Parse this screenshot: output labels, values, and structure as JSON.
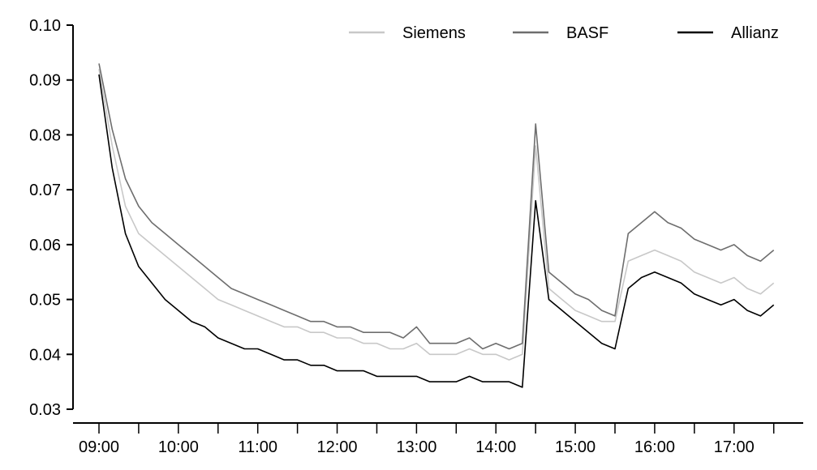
{
  "chart_data": {
    "type": "line",
    "title": "",
    "xlabel": "",
    "ylabel": "",
    "ylim": [
      0.03,
      0.1
    ],
    "xlim": [
      "09:00",
      "17:40"
    ],
    "grid": false,
    "legend_position": "top-right",
    "y_ticks": [
      "0.03",
      "0.04",
      "0.05",
      "0.06",
      "0.07",
      "0.08",
      "0.09",
      "0.10"
    ],
    "x_ticks": [
      "09:00",
      "10:00",
      "11:00",
      "12:00",
      "13:00",
      "14:00",
      "15:00",
      "16:00",
      "17:00"
    ],
    "x": [
      "09:00",
      "09:10",
      "09:20",
      "09:30",
      "09:40",
      "09:50",
      "10:00",
      "10:10",
      "10:20",
      "10:30",
      "10:40",
      "10:50",
      "11:00",
      "11:10",
      "11:20",
      "11:30",
      "11:40",
      "11:50",
      "12:00",
      "12:10",
      "12:20",
      "12:30",
      "12:40",
      "12:50",
      "13:00",
      "13:10",
      "13:20",
      "13:30",
      "13:40",
      "13:50",
      "14:00",
      "14:10",
      "14:20",
      "14:30",
      "14:40",
      "14:50",
      "15:00",
      "15:10",
      "15:20",
      "15:30",
      "15:40",
      "15:50",
      "16:00",
      "16:10",
      "16:20",
      "16:30",
      "16:40",
      "16:50",
      "17:00",
      "17:10",
      "17:20",
      "17:30"
    ],
    "series": [
      {
        "name": "Siemens",
        "color": "#c8c8c8",
        "values": [
          0.092,
          0.078,
          0.067,
          0.062,
          0.06,
          0.058,
          0.056,
          0.054,
          0.052,
          0.05,
          0.049,
          0.048,
          0.047,
          0.046,
          0.045,
          0.045,
          0.044,
          0.044,
          0.043,
          0.043,
          0.042,
          0.042,
          0.041,
          0.041,
          0.042,
          0.04,
          0.04,
          0.04,
          0.041,
          0.04,
          0.04,
          0.039,
          0.04,
          0.078,
          0.052,
          0.05,
          0.048,
          0.047,
          0.046,
          0.046,
          0.057,
          0.058,
          0.059,
          0.058,
          0.057,
          0.055,
          0.054,
          0.053,
          0.054,
          0.052,
          0.051,
          0.053
        ]
      },
      {
        "name": "BASF",
        "color": "#6e6e6e",
        "values": [
          0.093,
          0.081,
          0.072,
          0.067,
          0.064,
          0.062,
          0.06,
          0.058,
          0.056,
          0.054,
          0.052,
          0.051,
          0.05,
          0.049,
          0.048,
          0.047,
          0.046,
          0.046,
          0.045,
          0.045,
          0.044,
          0.044,
          0.044,
          0.043,
          0.045,
          0.042,
          0.042,
          0.042,
          0.043,
          0.041,
          0.042,
          0.041,
          0.042,
          0.082,
          0.055,
          0.053,
          0.051,
          0.05,
          0.048,
          0.047,
          0.062,
          0.064,
          0.066,
          0.064,
          0.063,
          0.061,
          0.06,
          0.059,
          0.06,
          0.058,
          0.057,
          0.059
        ]
      },
      {
        "name": "Allianz",
        "color": "#000000",
        "values": [
          0.091,
          0.074,
          0.062,
          0.056,
          0.053,
          0.05,
          0.048,
          0.046,
          0.045,
          0.043,
          0.042,
          0.041,
          0.041,
          0.04,
          0.039,
          0.039,
          0.038,
          0.038,
          0.037,
          0.037,
          0.037,
          0.036,
          0.036,
          0.036,
          0.036,
          0.035,
          0.035,
          0.035,
          0.036,
          0.035,
          0.035,
          0.035,
          0.034,
          0.068,
          0.05,
          0.048,
          0.046,
          0.044,
          0.042,
          0.041,
          0.052,
          0.054,
          0.055,
          0.054,
          0.053,
          0.051,
          0.05,
          0.049,
          0.05,
          0.048,
          0.047,
          0.049
        ]
      }
    ]
  }
}
